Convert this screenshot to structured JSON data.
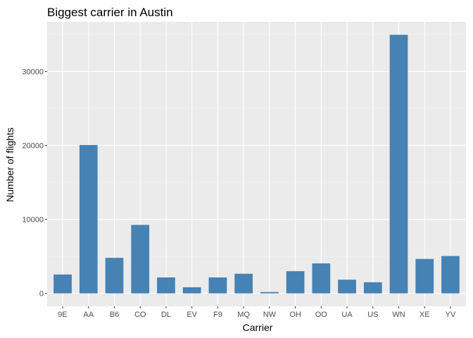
{
  "chart_data": {
    "type": "bar",
    "title": "Biggest carrier in Austin",
    "xlabel": "Carrier",
    "ylabel": "Number of flights",
    "categories": [
      "9E",
      "AA",
      "B6",
      "CO",
      "DL",
      "EV",
      "F9",
      "MQ",
      "NW",
      "OH",
      "OO",
      "UA",
      "US",
      "WN",
      "XE",
      "YV"
    ],
    "values": [
      2550,
      20050,
      4800,
      9250,
      2150,
      825,
      2150,
      2650,
      180,
      3000,
      4050,
      1850,
      1500,
      34950,
      4650,
      5050
    ],
    "yticks": [
      0,
      10000,
      20000,
      30000
    ],
    "ylim": [
      -1750,
      36700
    ],
    "grid": true,
    "legend": "none",
    "colors": {
      "bar": "#4682B4",
      "panel": "#EBEBEB",
      "grid_major": "#FFFFFF",
      "grid_minor": "#F5F5F5"
    }
  }
}
